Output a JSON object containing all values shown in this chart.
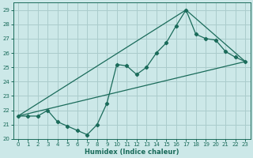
{
  "xlabel": "Humidex (Indice chaleur)",
  "bg_color": "#cce8e8",
  "grid_color": "#aacccc",
  "line_color": "#1a6b5a",
  "xlim": [
    -0.5,
    23.5
  ],
  "ylim": [
    20,
    29.5
  ],
  "xticks": [
    0,
    1,
    2,
    3,
    4,
    5,
    6,
    7,
    8,
    9,
    10,
    11,
    12,
    13,
    14,
    15,
    16,
    17,
    18,
    19,
    20,
    21,
    22,
    23
  ],
  "yticks": [
    20,
    21,
    22,
    23,
    24,
    25,
    26,
    27,
    28,
    29
  ],
  "line1_x": [
    0,
    1,
    2,
    3,
    4,
    5,
    6,
    7,
    8,
    9,
    10,
    11,
    12,
    13,
    14,
    15,
    16,
    17,
    18,
    19,
    20,
    21,
    22,
    23
  ],
  "line1_y": [
    21.6,
    21.6,
    21.6,
    22.0,
    21.2,
    20.9,
    20.6,
    20.3,
    21.0,
    22.5,
    25.2,
    25.1,
    24.5,
    25.0,
    26.0,
    26.7,
    27.9,
    29.0,
    27.3,
    27.0,
    26.9,
    26.1,
    25.7,
    25.4
  ],
  "line2_x": [
    0,
    23
  ],
  "line2_y": [
    21.6,
    25.4
  ],
  "line3_x": [
    0,
    17,
    23
  ],
  "line3_y": [
    21.6,
    29.0,
    25.4
  ]
}
